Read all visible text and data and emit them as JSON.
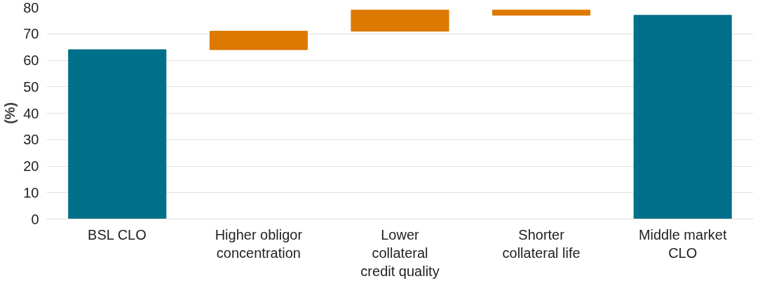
{
  "chart_data": {
    "type": "bar",
    "ylabel": "(%)",
    "categories": [
      "BSL CLO",
      "Higher obligor\nconcentration",
      "Lower\ncollateral\ncredit quality",
      "Shorter\ncollateral life",
      "Middle market\nCLO"
    ],
    "values": [
      64,
      7,
      8,
      -2,
      77
    ],
    "base": [
      0,
      64,
      71,
      79,
      0
    ],
    "colors": [
      "#006f89",
      "#dd7800",
      "#dd7800",
      "#dd7800",
      "#006f89"
    ],
    "ylim": [
      0,
      80
    ],
    "yticks": [
      0,
      10,
      20,
      30,
      40,
      50,
      60,
      70,
      80
    ],
    "grid": "y"
  }
}
